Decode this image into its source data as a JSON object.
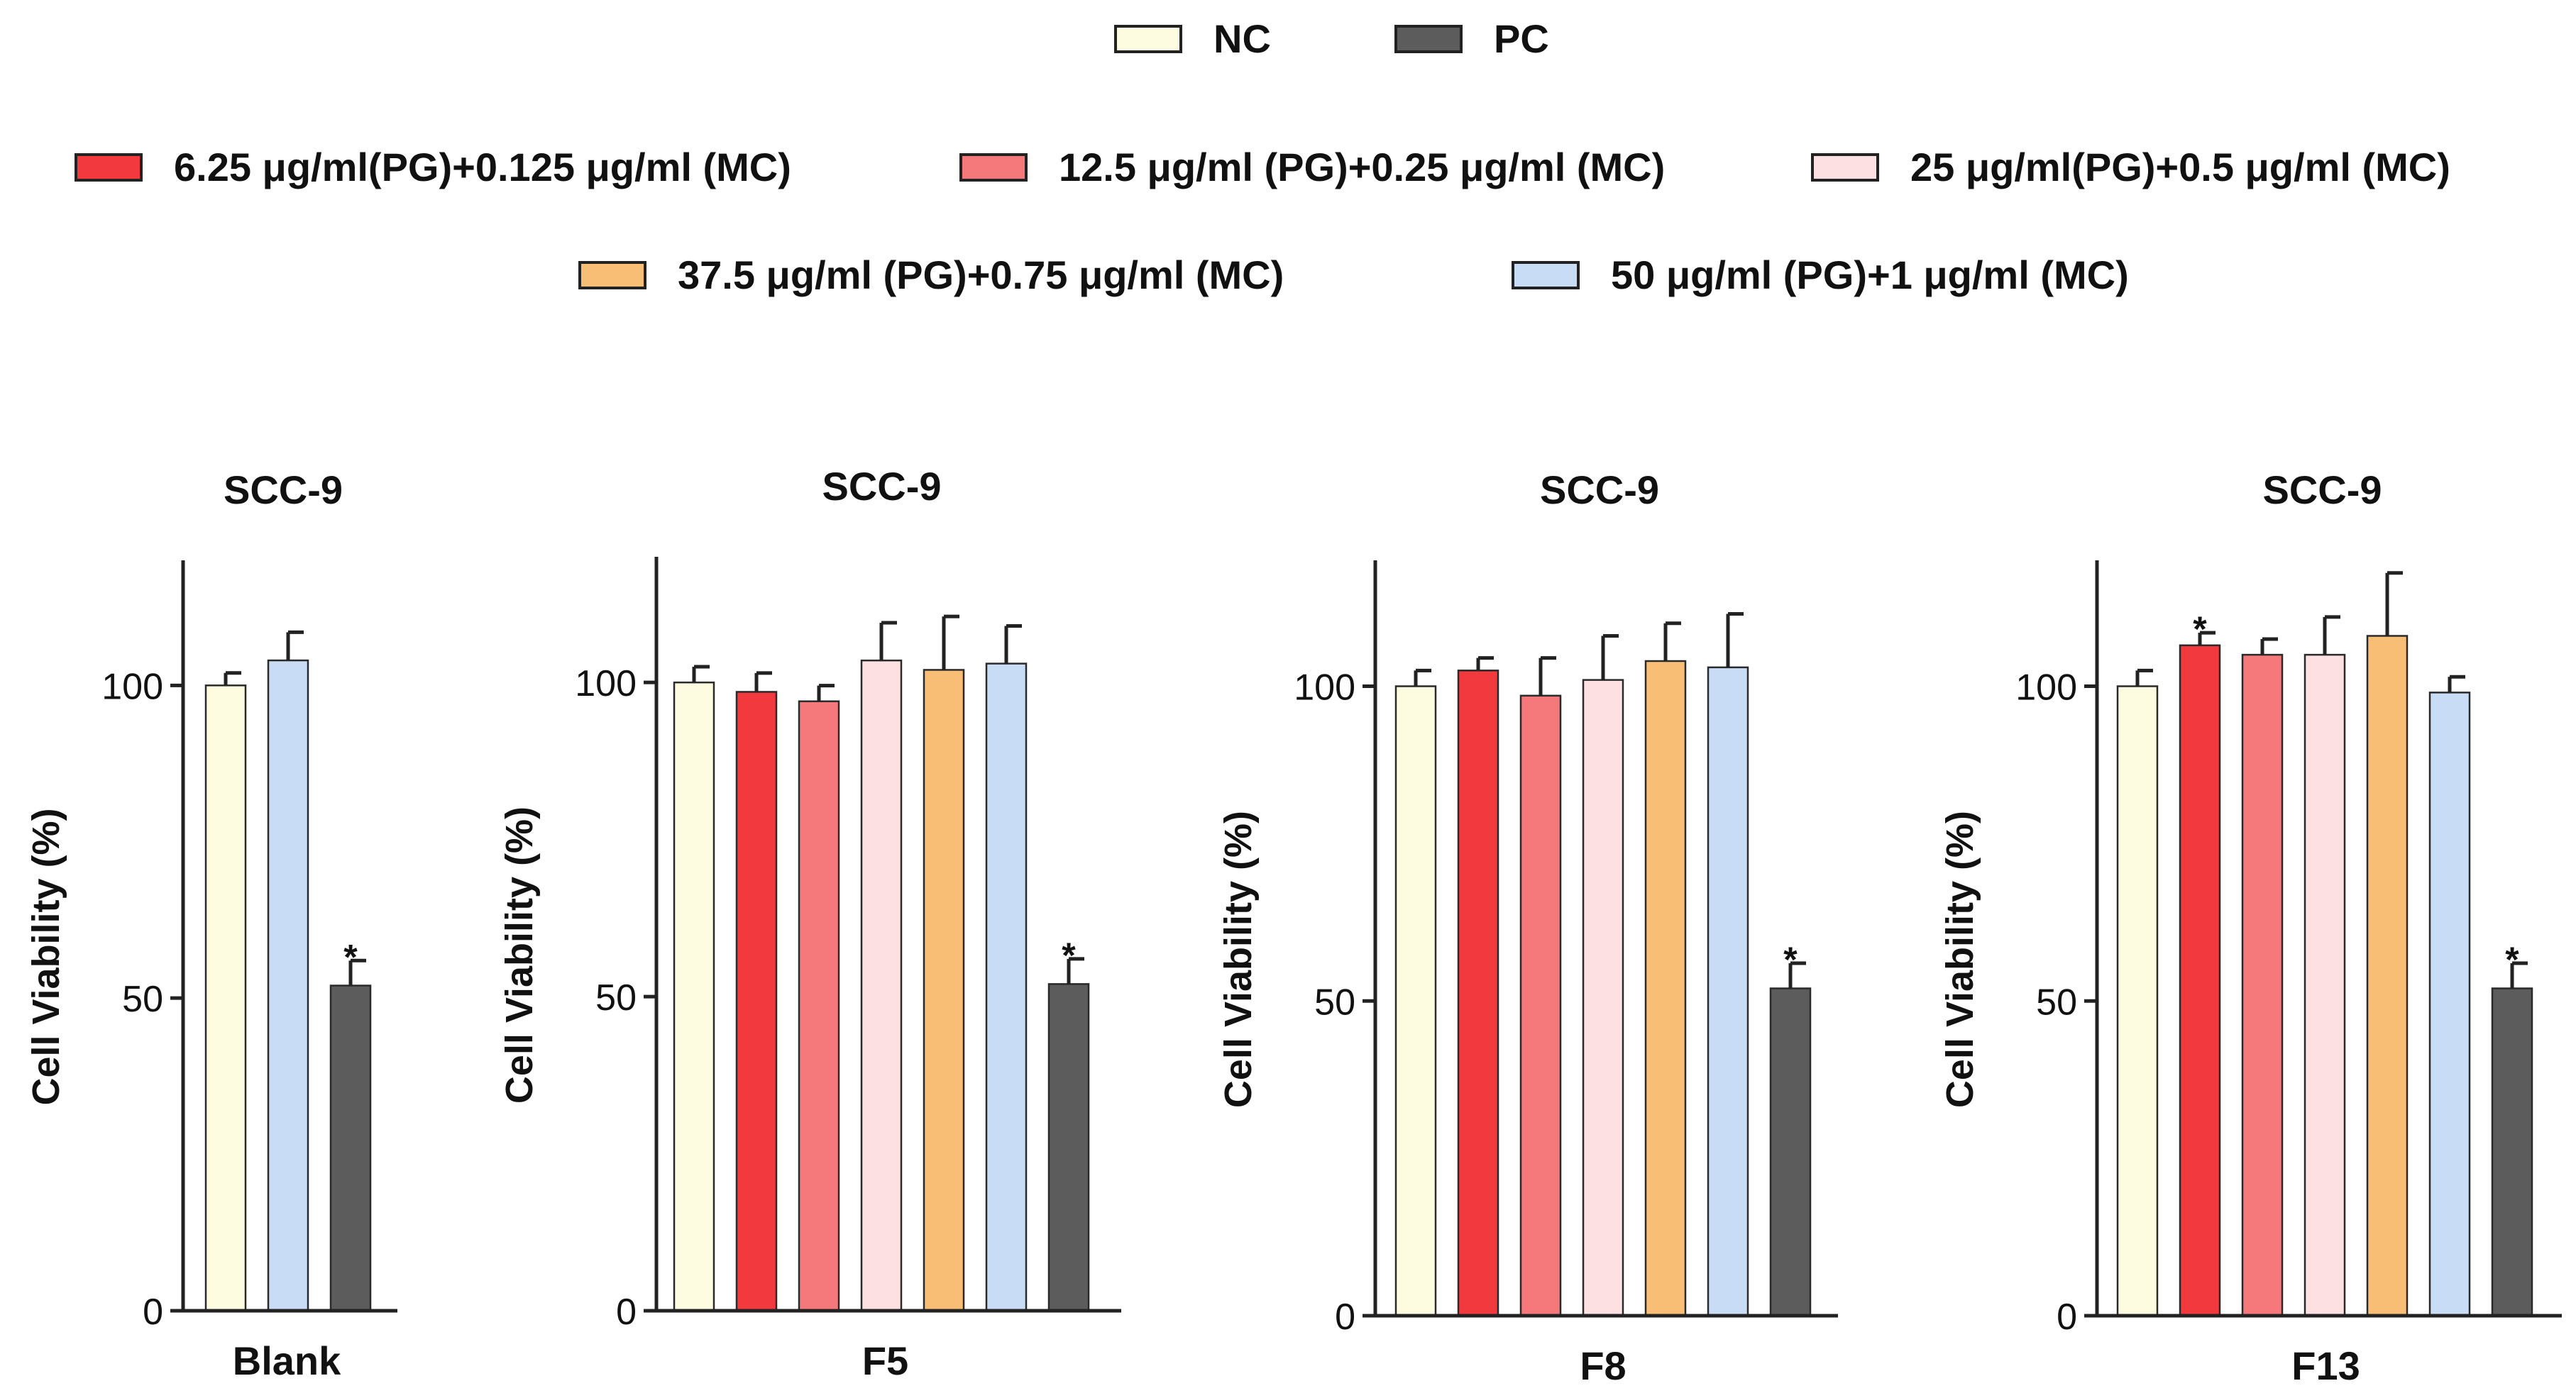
{
  "legend": {
    "nc": {
      "label": "NC",
      "color": "#FDFCE0"
    },
    "pc": {
      "label": "PC",
      "color": "#5C5C5C"
    },
    "c1": {
      "label": "6.25 μg/ml(PG)+0.125 μg/ml (MC)",
      "color": "#F2393E"
    },
    "c2": {
      "label": "12.5 μg/ml (PG)+0.25 μg/ml (MC)",
      "color": "#F5797A"
    },
    "c3": {
      "label": "25 μg/ml(PG)+0.5 μg/ml (MC)",
      "color": "#FCE0E2"
    },
    "c4": {
      "label": "37.5 μg/ml (PG)+0.75 μg/ml (MC)",
      "color": "#F9BE75"
    },
    "c5": {
      "label": "50 μg/ml (PG)+1 μg/ml (MC)",
      "color": "#C9DCF6"
    }
  },
  "chart_data": [
    {
      "type": "bar",
      "title": "SCC-9",
      "xlabel": "Blank",
      "ylabel": "Cell Viability (%)",
      "ylim": [
        0,
        120
      ],
      "yticks": [
        0,
        50,
        100
      ],
      "groups": [
        "NC",
        "50 μg/ml (PG)+1 μg/ml (MC)",
        "PC"
      ],
      "values": [
        100,
        104,
        52
      ],
      "errors": [
        2,
        4.5,
        4
      ],
      "significant": [
        false,
        false,
        true
      ],
      "colors": [
        "#FDFCE0",
        "#C9DCF6",
        "#5C5C5C"
      ]
    },
    {
      "type": "bar",
      "title": "SCC-9",
      "xlabel": "F5",
      "ylabel": "Cell Viability (%)",
      "ylim": [
        0,
        120
      ],
      "yticks": [
        0,
        50,
        100
      ],
      "groups": [
        "NC",
        "6.25 μg/ml(PG)+0.125 μg/ml (MC)",
        "12.5 μg/ml (PG)+0.25 μg/ml (MC)",
        "25 μg/ml(PG)+0.5 μg/ml (MC)",
        "37.5 μg/ml (PG)+0.75 μg/ml (MC)",
        "50 μg/ml (PG)+1 μg/ml (MC)",
        "PC"
      ],
      "values": [
        100,
        98.5,
        97,
        103.5,
        102,
        103,
        52
      ],
      "errors": [
        2.5,
        3,
        2.5,
        6,
        8.5,
        6,
        4
      ],
      "significant": [
        false,
        false,
        false,
        false,
        false,
        false,
        true
      ],
      "colors": [
        "#FDFCE0",
        "#F2393E",
        "#F5797A",
        "#FCE0E2",
        "#F9BE75",
        "#C9DCF6",
        "#5C5C5C"
      ]
    },
    {
      "type": "bar",
      "title": "SCC-9",
      "xlabel": "F8",
      "ylabel": "Cell Viability (%)",
      "ylim": [
        0,
        120
      ],
      "yticks": [
        0,
        50,
        100
      ],
      "groups": [
        "NC",
        "6.25 μg/ml(PG)+0.125 μg/ml (MC)",
        "12.5 μg/ml (PG)+0.25 μg/ml (MC)",
        "25 μg/ml(PG)+0.5 μg/ml (MC)",
        "37.5 μg/ml (PG)+0.75 μg/ml (MC)",
        "50 μg/ml (PG)+1 μg/ml (MC)",
        "PC"
      ],
      "values": [
        100,
        102.5,
        98.5,
        101,
        104,
        103,
        52
      ],
      "errors": [
        2.5,
        2,
        6,
        7,
        6,
        8.5,
        4
      ],
      "significant": [
        false,
        false,
        false,
        false,
        false,
        false,
        true
      ],
      "colors": [
        "#FDFCE0",
        "#F2393E",
        "#F5797A",
        "#FCE0E2",
        "#F9BE75",
        "#C9DCF6",
        "#5C5C5C"
      ]
    },
    {
      "type": "bar",
      "title": "SCC-9",
      "xlabel": "F13",
      "ylabel": "Cell Viability (%)",
      "ylim": [
        0,
        120
      ],
      "yticks": [
        0,
        50,
        100
      ],
      "groups": [
        "NC",
        "6.25 μg/ml(PG)+0.125 μg/ml (MC)",
        "12.5 μg/ml (PG)+0.25 μg/ml (MC)",
        "25 μg/ml(PG)+0.5 μg/ml (MC)",
        "37.5 μg/ml (PG)+0.75 μg/ml (MC)",
        "50 μg/ml (PG)+1 μg/ml (MC)",
        "PC"
      ],
      "values": [
        100,
        106.5,
        105,
        105,
        108,
        99,
        52
      ],
      "errors": [
        2.5,
        2,
        2.5,
        6,
        10,
        2.5,
        4
      ],
      "significant": [
        false,
        true,
        false,
        false,
        false,
        false,
        true
      ],
      "colors": [
        "#FDFCE0",
        "#F2393E",
        "#F5797A",
        "#FCE0E2",
        "#F9BE75",
        "#C9DCF6",
        "#5C5C5C"
      ]
    }
  ]
}
